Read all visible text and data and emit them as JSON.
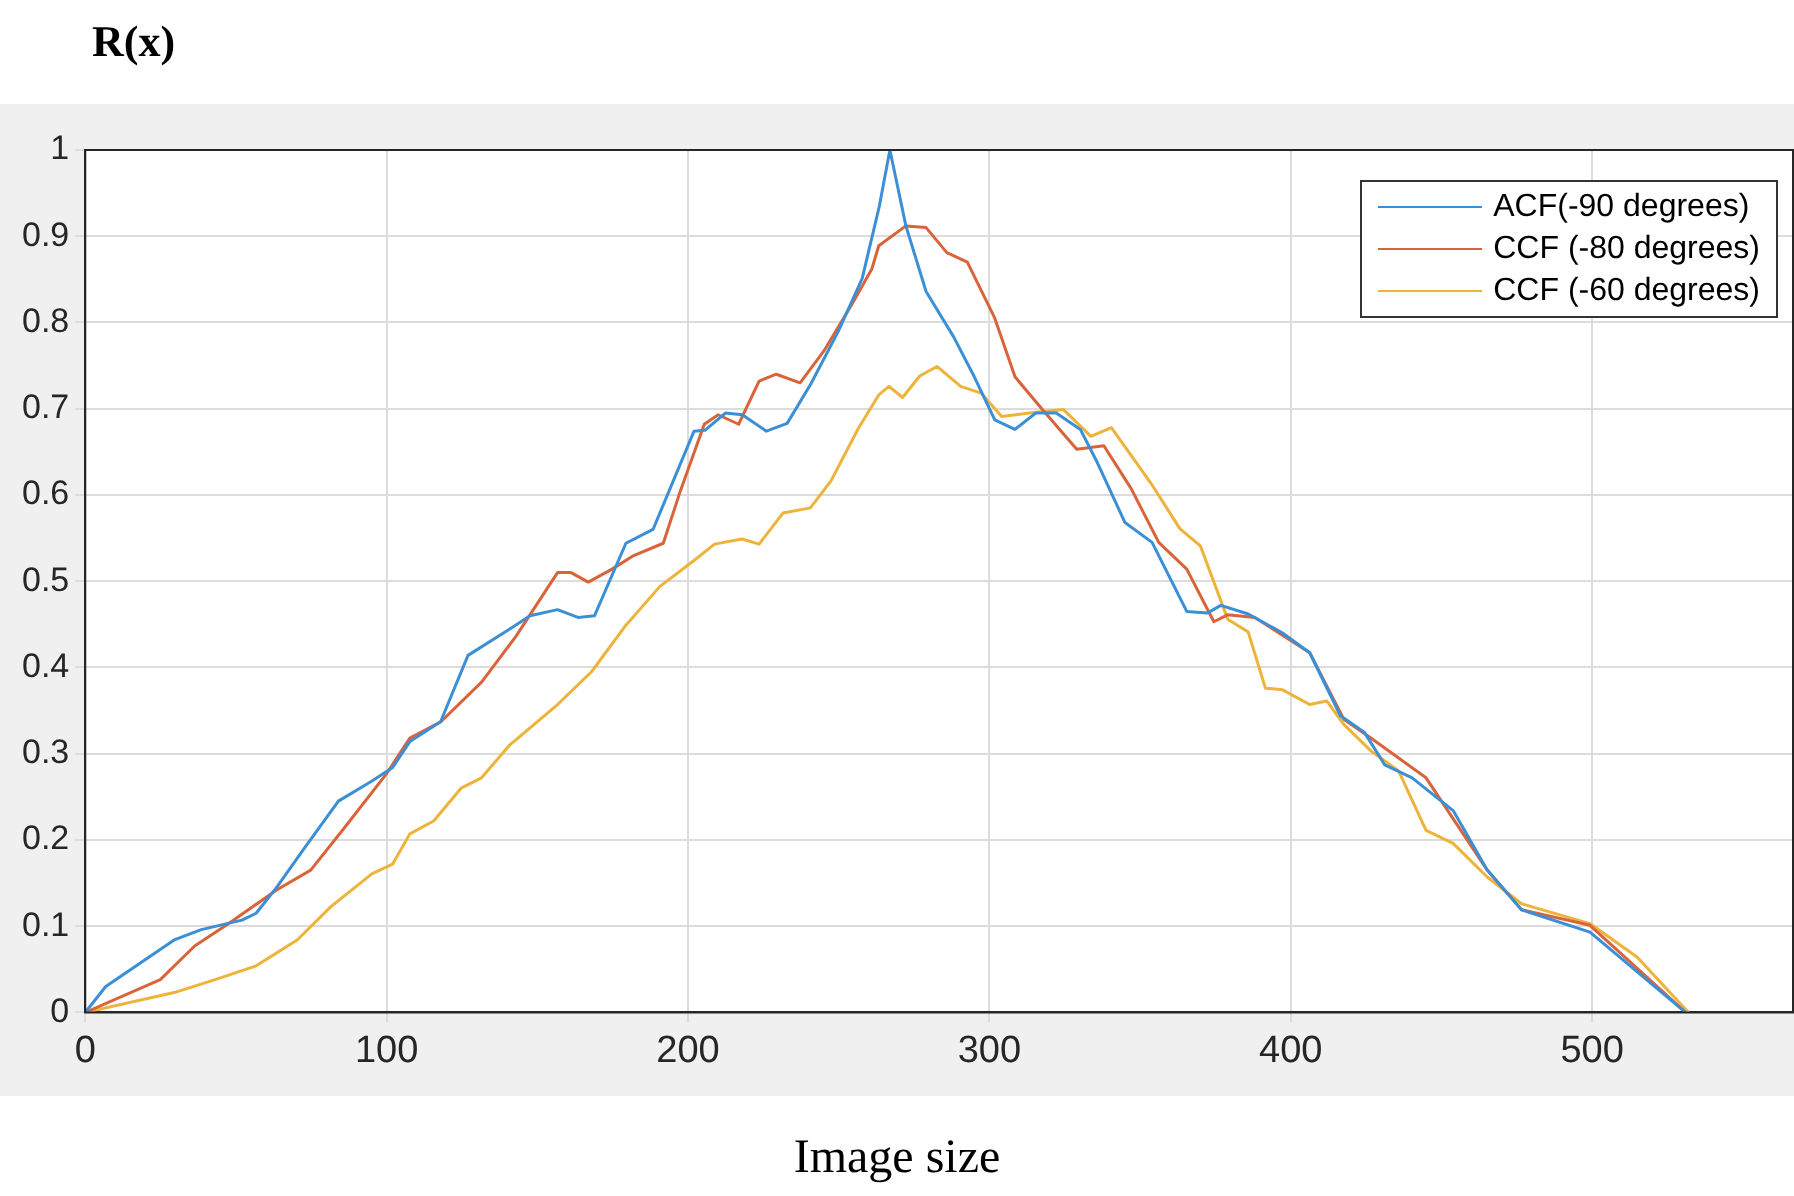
{
  "chart_data": {
    "type": "line",
    "title": "R(x)",
    "xlabel": "Image size",
    "xlim": [
      0,
      567
    ],
    "ylim": [
      0,
      1
    ],
    "xticks": [
      0,
      100,
      200,
      300,
      400,
      500
    ],
    "yticks": [
      0,
      0.1,
      0.2,
      0.3,
      0.4,
      0.5,
      0.6,
      0.7,
      0.8,
      0.9,
      1
    ],
    "grid": true,
    "legend": "top right",
    "marker": "none",
    "line_style": "solid",
    "series": [
      {
        "name": "ACF(-90 degrees)",
        "color": "#3a8fd6",
        "x": [
          0,
          6.8,
          29.5,
          38.5,
          52,
          56.7,
          63.5,
          72.6,
          84,
          95,
          102,
          107.7,
          117.9,
          127,
          140.6,
          147.6,
          156.7,
          163.5,
          169,
          179.4,
          188.4,
          202,
          205.6,
          212.4,
          218,
          226,
          232.9,
          240.8,
          249.9,
          257.8,
          263.5,
          267,
          272.3,
          279,
          288.2,
          295,
          301.8,
          308.5,
          315.4,
          322.2,
          330.2,
          335.9,
          345,
          354,
          365.5,
          372.3,
          376.8,
          385.9,
          397.3,
          406.3,
          416.5,
          424.4,
          431.2,
          440.3,
          453.9,
          465.2,
          476.6,
          499.3,
          531
        ],
        "values": [
          0,
          0.03,
          0.084,
          0.096,
          0.107,
          0.115,
          0.145,
          0.19,
          0.245,
          0.268,
          0.284,
          0.314,
          0.337,
          0.414,
          0.444,
          0.46,
          0.467,
          0.458,
          0.46,
          0.544,
          0.56,
          0.674,
          0.675,
          0.695,
          0.693,
          0.674,
          0.683,
          0.729,
          0.79,
          0.851,
          0.935,
          1,
          0.912,
          0.836,
          0.783,
          0.737,
          0.687,
          0.676,
          0.695,
          0.695,
          0.676,
          0.637,
          0.568,
          0.545,
          0.465,
          0.463,
          0.472,
          0.462,
          0.44,
          0.417,
          0.344,
          0.325,
          0.287,
          0.272,
          0.234,
          0.165,
          0.119,
          0.093,
          0
        ]
      },
      {
        "name": "CCF (-80 degrees)",
        "color": "#d9643a",
        "x": [
          0,
          24.9,
          36.3,
          47.6,
          63.5,
          74.8,
          86.2,
          99.8,
          107.7,
          118,
          131.5,
          142.9,
          156.7,
          161.2,
          166.9,
          174.8,
          181.6,
          191.8,
          197.5,
          205.4,
          210,
          216.8,
          223.6,
          229.3,
          237.2,
          245.1,
          254.2,
          261,
          263.3,
          272.3,
          279,
          285.9,
          292.7,
          301.8,
          308.5,
          317.6,
          329,
          338,
          347.1,
          356.2,
          365.5,
          374.5,
          379,
          388.1,
          406.3,
          417.6,
          426.7,
          435.8,
          444.9,
          465.2,
          476.6,
          499.3,
          531
        ],
        "values": [
          0,
          0.038,
          0.077,
          0.103,
          0.142,
          0.165,
          0.215,
          0.276,
          0.318,
          0.337,
          0.383,
          0.436,
          0.51,
          0.51,
          0.499,
          0.514,
          0.529,
          0.544,
          0.605,
          0.682,
          0.693,
          0.682,
          0.732,
          0.74,
          0.73,
          0.767,
          0.82,
          0.862,
          0.889,
          0.912,
          0.91,
          0.881,
          0.87,
          0.805,
          0.737,
          0.699,
          0.653,
          0.657,
          0.607,
          0.545,
          0.514,
          0.453,
          0.461,
          0.458,
          0.417,
          0.34,
          0.318,
          0.295,
          0.272,
          0.165,
          0.119,
          0.101,
          0
        ]
      },
      {
        "name": "CCF (-60 degrees)",
        "color": "#edb33a",
        "x": [
          0,
          29.5,
          43.1,
          56.7,
          70.3,
          81.6,
          95.2,
          102,
          107.7,
          115.6,
          124.7,
          131.5,
          140.8,
          147.6,
          156.7,
          168,
          179.4,
          190.7,
          202,
          208.8,
          217.9,
          223.6,
          231.5,
          240.6,
          247.4,
          256.5,
          263.3,
          266.7,
          271.2,
          276.9,
          282.6,
          290.5,
          297.3,
          304.1,
          313.2,
          324.6,
          333.7,
          340.5,
          354.1,
          363.2,
          370,
          379.1,
          385.9,
          391.6,
          397.3,
          406.3,
          412,
          417.6,
          426.7,
          435.8,
          444.9,
          453.9,
          465.2,
          476.6,
          499.3,
          515,
          532
        ],
        "values": [
          0,
          0.023,
          0.038,
          0.054,
          0.084,
          0.123,
          0.161,
          0.172,
          0.207,
          0.222,
          0.26,
          0.272,
          0.31,
          0.33,
          0.357,
          0.395,
          0.449,
          0.494,
          0.524,
          0.543,
          0.549,
          0.543,
          0.579,
          0.585,
          0.616,
          0.677,
          0.716,
          0.726,
          0.713,
          0.738,
          0.749,
          0.726,
          0.718,
          0.691,
          0.695,
          0.699,
          0.668,
          0.678,
          0.611,
          0.561,
          0.541,
          0.456,
          0.441,
          0.376,
          0.374,
          0.357,
          0.361,
          0.334,
          0.303,
          0.28,
          0.211,
          0.196,
          0.157,
          0.126,
          0.103,
          0.064,
          0
        ]
      }
    ]
  }
}
